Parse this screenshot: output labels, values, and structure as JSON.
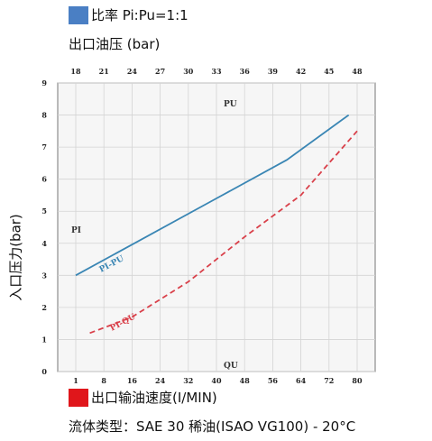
{
  "legend_top": {
    "color": "#4a7fc4",
    "text": "比率 Pi:Pu=1:1"
  },
  "y_title_top": "出口油压 (bar)",
  "y_title_rotated": "入口压力(bar)",
  "legend_bottom": {
    "color": "#e0161b",
    "text": "出口输油速度(I/MIN)"
  },
  "fluid_type": "流体类型：SAE 30 稀油(ISAO VG100) - 20°C",
  "chart_data": {
    "type": "line",
    "y_ticks": [
      "0",
      "1",
      "2",
      "3",
      "4",
      "5",
      "6",
      "7",
      "8",
      "9"
    ],
    "ylim": [
      0,
      9
    ],
    "x_top_label": "PU",
    "x_top_ticks": [
      "18",
      "21",
      "24",
      "27",
      "30",
      "33",
      "36",
      "39",
      "42",
      "45",
      "48"
    ],
    "x_bottom_label": "QU",
    "x_bottom_ticks": [
      "1",
      "8",
      "16",
      "24",
      "32",
      "40",
      "48",
      "56",
      "64",
      "72",
      "80"
    ],
    "y_axis_small_label": "PI",
    "series": [
      {
        "name": "PI-PU",
        "color": "#3a86b4",
        "style": "solid",
        "points": [
          [
            0.0,
            3.0
          ],
          [
            0.25,
            4.2
          ],
          [
            0.5,
            5.4
          ],
          [
            0.75,
            6.6
          ],
          [
            0.97,
            8.0
          ]
        ]
      },
      {
        "name": "PI-QU",
        "color": "#d9404a",
        "style": "dashed",
        "points": [
          [
            0.05,
            1.2
          ],
          [
            0.2,
            1.7
          ],
          [
            0.4,
            2.8
          ],
          [
            0.6,
            4.2
          ],
          [
            0.8,
            5.5
          ],
          [
            1.0,
            7.5
          ]
        ]
      }
    ]
  }
}
